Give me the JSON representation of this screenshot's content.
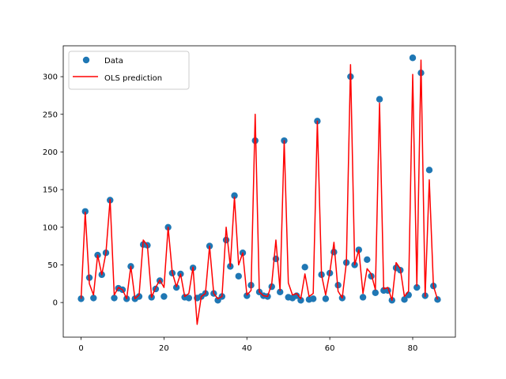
{
  "chart_data": {
    "type": "line",
    "title": "",
    "xlabel": "",
    "ylabel": "",
    "xlim": [
      -4.3,
      90.3
    ],
    "ylim": [
      -46,
      341
    ],
    "x_ticks": [
      0,
      20,
      40,
      60,
      80
    ],
    "y_ticks": [
      0,
      50,
      100,
      150,
      200,
      250,
      300
    ],
    "legend_position": "upper-left",
    "grid": false,
    "colors": {
      "data": "#1f77b4",
      "prediction": "#ff0000"
    },
    "series": [
      {
        "name": "Data",
        "type": "scatter",
        "x": [
          0,
          1,
          2,
          3,
          4,
          5,
          6,
          7,
          8,
          9,
          10,
          11,
          12,
          13,
          14,
          15,
          16,
          17,
          18,
          19,
          20,
          21,
          22,
          23,
          24,
          25,
          26,
          27,
          28,
          29,
          30,
          31,
          32,
          33,
          34,
          35,
          36,
          37,
          38,
          39,
          40,
          41,
          42,
          43,
          44,
          45,
          46,
          47,
          48,
          49,
          50,
          51,
          52,
          53,
          54,
          55,
          56,
          57,
          58,
          59,
          60,
          61,
          62,
          63,
          64,
          65,
          66,
          67,
          68,
          69,
          70,
          71,
          72,
          73,
          74,
          75,
          76,
          77,
          78,
          79,
          80,
          81,
          82,
          83,
          84,
          85,
          86
        ],
        "y": [
          5,
          121,
          33,
          6,
          63,
          37,
          66,
          136,
          6,
          19,
          17,
          5,
          48,
          5,
          8,
          77,
          76,
          7,
          18,
          29,
          8,
          100,
          39,
          20,
          38,
          7,
          6,
          46,
          6,
          8,
          12,
          75,
          12,
          3,
          8,
          83,
          48,
          142,
          35,
          66,
          9,
          23,
          215,
          14,
          9,
          8,
          21,
          58,
          14,
          215,
          7,
          6,
          9,
          3,
          47,
          4,
          5,
          241,
          37,
          5,
          39,
          67,
          23,
          6,
          53,
          300,
          50,
          70,
          7,
          57,
          35,
          13,
          270,
          16,
          16,
          3,
          46,
          43,
          4,
          10,
          325,
          20,
          305,
          9,
          176,
          22,
          4
        ]
      },
      {
        "name": "OLS prediction",
        "type": "line",
        "x": [
          0,
          1,
          2,
          3,
          4,
          5,
          6,
          7,
          8,
          9,
          10,
          11,
          12,
          13,
          14,
          15,
          16,
          17,
          18,
          19,
          20,
          21,
          22,
          23,
          24,
          25,
          26,
          27,
          28,
          29,
          30,
          31,
          32,
          33,
          34,
          35,
          36,
          37,
          38,
          39,
          40,
          41,
          42,
          43,
          44,
          45,
          46,
          47,
          48,
          49,
          50,
          51,
          52,
          53,
          54,
          55,
          56,
          57,
          58,
          59,
          60,
          61,
          62,
          63,
          64,
          65,
          66,
          67,
          68,
          69,
          70,
          71,
          72,
          73,
          74,
          75,
          76,
          77,
          78,
          79,
          80,
          81,
          82,
          83,
          84,
          85,
          86
        ],
        "y": [
          5,
          120,
          25,
          10,
          63,
          37,
          66,
          137,
          10,
          20,
          17,
          5,
          48,
          5,
          10,
          83,
          76,
          7,
          20,
          30,
          20,
          100,
          40,
          21,
          38,
          8,
          12,
          47,
          -29,
          8,
          12,
          75,
          12,
          5,
          8,
          100,
          48,
          140,
          50,
          66,
          10,
          16,
          250,
          14,
          9,
          8,
          25,
          83,
          16,
          215,
          26,
          10,
          12,
          5,
          38,
          8,
          12,
          241,
          37,
          10,
          40,
          80,
          15,
          6,
          53,
          316,
          50,
          70,
          12,
          45,
          38,
          17,
          265,
          18,
          20,
          3,
          53,
          45,
          8,
          15,
          303,
          22,
          322,
          8,
          163,
          22,
          4
        ]
      }
    ]
  }
}
